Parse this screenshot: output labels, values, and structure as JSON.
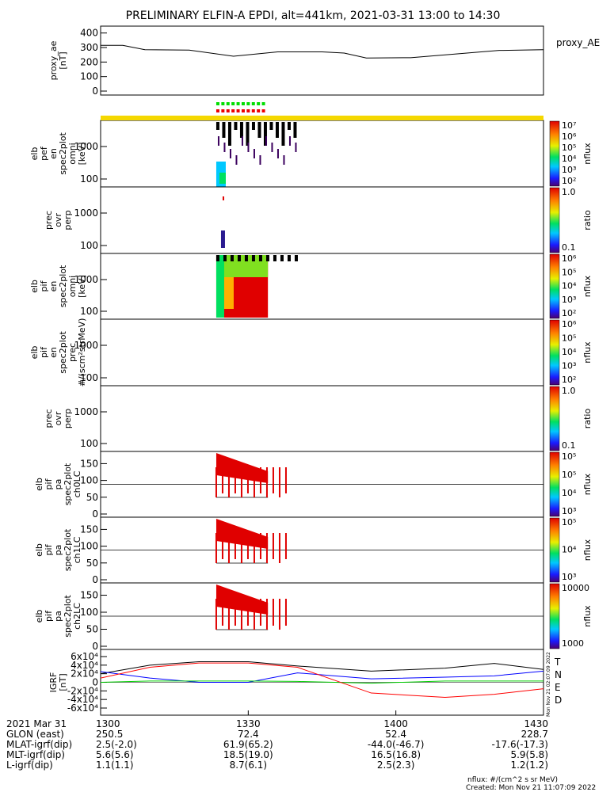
{
  "title": "PRELIMINARY ELFIN-A EPDI, alt=441km, 2021-03-31 13:00 to 14:30",
  "colors": {
    "bar_yellow": "#f5d800",
    "green_sq": "#00dd00",
    "red_sq": "#ee0000",
    "N": "#0000ff",
    "E": "#00cc00",
    "D": "#ff0000"
  },
  "chart_data": [
    {
      "type": "line",
      "id": "proxy_ae",
      "ylabel": "proxy_ae\n[nT]",
      "yticks": [
        "0",
        "100",
        "200",
        "300",
        "400"
      ],
      "ylim": [
        0,
        420
      ],
      "series": [
        {
          "name": "proxy_AE",
          "x": [
            0,
            5,
            10,
            20,
            30,
            40,
            50,
            55,
            60,
            70,
            80,
            90,
            100
          ],
          "y": [
            315,
            315,
            285,
            282,
            240,
            270,
            270,
            262,
            228,
            230,
            255,
            280,
            285
          ]
        }
      ]
    },
    {
      "type": "heatmap",
      "id": "elb_pef_en",
      "ylabel": "elb\npef\nen\nspec2plot\nomni\n[keV]",
      "yticks": [
        "100",
        "1000"
      ],
      "colorbar": {
        "label": "nflux",
        "ticks": [
          "10²",
          "10³",
          "10⁴",
          "10⁵",
          "10⁶",
          "10⁷"
        ]
      }
    },
    {
      "type": "heatmap",
      "id": "prec_ovr_perp_1",
      "ylabel": "prec\novr\nperp",
      "yticks": [
        "100",
        "1000"
      ],
      "colorbar": {
        "label": "ratio",
        "ticks": [
          "0.1",
          "1.0"
        ]
      }
    },
    {
      "type": "heatmap",
      "id": "elb_pif_en",
      "ylabel": "elb\npif\nen\nspec2plot\nomni\n[keV]",
      "yticks": [
        "100",
        "1000"
      ],
      "colorbar": {
        "label": "nflux",
        "ticks": [
          "10²",
          "10³",
          "10⁴",
          "10⁵",
          "10⁶"
        ]
      }
    },
    {
      "type": "heatmap",
      "id": "elb_pif_prec",
      "ylabel": "elb\npif\nen\nspec2plot\nprec\n#/(scm²strMeV)",
      "yticks": [
        "100",
        "1000"
      ],
      "colorbar": {
        "label": "nflux",
        "ticks": [
          "10²",
          "10³",
          "10⁴",
          "10⁵",
          "10⁶"
        ]
      }
    },
    {
      "type": "heatmap",
      "id": "prec_ovr_perp_2",
      "ylabel": "prec\novr\nperp",
      "yticks": [
        "100",
        "1000"
      ],
      "colorbar": {
        "label": "ratio",
        "ticks": [
          "0.1",
          "1.0"
        ]
      }
    },
    {
      "type": "heatmap",
      "id": "pa_ch0",
      "ylabel": "elb\npif\npa\nspec2plot\nch0LC",
      "yticks": [
        "0",
        "50",
        "100",
        "150"
      ],
      "colorbar": {
        "label": "nflux",
        "ticks": [
          "10³",
          "10⁴",
          "10⁵",
          "10⁵"
        ]
      }
    },
    {
      "type": "heatmap",
      "id": "pa_ch1",
      "ylabel": "elb\npif\npa\nspec2plot\nch1LC",
      "yticks": [
        "0",
        "50",
        "100",
        "150"
      ],
      "colorbar": {
        "label": "nflux",
        "ticks": [
          "10³",
          "10⁴",
          "10⁵"
        ]
      }
    },
    {
      "type": "heatmap",
      "id": "pa_ch2",
      "ylabel": "elb\npif\npa\nspec2plot\nch2LC",
      "yticks": [
        "0",
        "50",
        "100",
        "150"
      ],
      "colorbar": {
        "label": "nflux",
        "ticks": [
          "1000",
          "10000"
        ]
      }
    },
    {
      "type": "line",
      "id": "igrf",
      "ylabel": "IGRF\n[nT]",
      "yticks": [
        "-6x10⁴",
        "-4x10⁴",
        "-2x10⁴",
        "0",
        "2x10⁴",
        "4x10⁴",
        "6x10⁴"
      ],
      "ylim": [
        -60000,
        60000
      ],
      "series": [
        {
          "name": "T",
          "color": "#000000",
          "x": [
            0,
            10,
            20,
            30,
            40,
            55,
            70,
            80,
            90
          ],
          "y": [
            20000,
            40000,
            48000,
            48000,
            38000,
            26000,
            33000,
            44000,
            30000
          ]
        },
        {
          "name": "N",
          "color": "#0000ff",
          "x": [
            0,
            10,
            20,
            30,
            40,
            55,
            70,
            80,
            90
          ],
          "y": [
            25000,
            10000,
            0,
            0,
            22000,
            8000,
            12000,
            15000,
            26000
          ]
        },
        {
          "name": "E",
          "color": "#00cc00",
          "x": [
            0,
            10,
            20,
            30,
            40,
            55,
            70,
            80,
            90
          ],
          "y": [
            0,
            3000,
            3000,
            3000,
            2000,
            -2000,
            3000,
            3000,
            3000
          ]
        },
        {
          "name": "D",
          "color": "#ff0000",
          "x": [
            0,
            10,
            20,
            30,
            40,
            55,
            70,
            80,
            90
          ],
          "y": [
            10000,
            35000,
            45000,
            45000,
            35000,
            -25000,
            -35000,
            -28000,
            -15000
          ]
        }
      ],
      "legend": [
        "T",
        "N",
        "E",
        "D"
      ]
    }
  ],
  "xaxis": {
    "rows": [
      {
        "label": "2021 Mar 31",
        "values": [
          "1300",
          "1330",
          "1400",
          "1430"
        ]
      },
      {
        "label": "GLON (east)",
        "values": [
          "250.5",
          "72.4",
          "52.4",
          "228.7"
        ]
      },
      {
        "label": "MLAT-igrf(dip)",
        "values": [
          "2.5(-2.0)",
          "61.9(65.2)",
          "-44.0(-46.7)",
          "-17.6(-17.3)"
        ]
      },
      {
        "label": "MLT-igrf(dip)",
        "values": [
          "5.6(5.6)",
          "18.5(19.0)",
          "16.5(16.8)",
          "5.9(5.8)"
        ]
      },
      {
        "label": "L-igrf(dip)",
        "values": [
          "1.1(1.1)",
          "8.7(6.1)",
          "2.5(2.3)",
          "1.2(1.2)"
        ]
      }
    ]
  },
  "footer": {
    "nflux": "nflux: #/(cm^2 s sr MeV)",
    "created": "Created: Mon Nov 21 11:07:09 2022",
    "side_stamp": "Mon Nov 21 02:07:09 2022"
  }
}
